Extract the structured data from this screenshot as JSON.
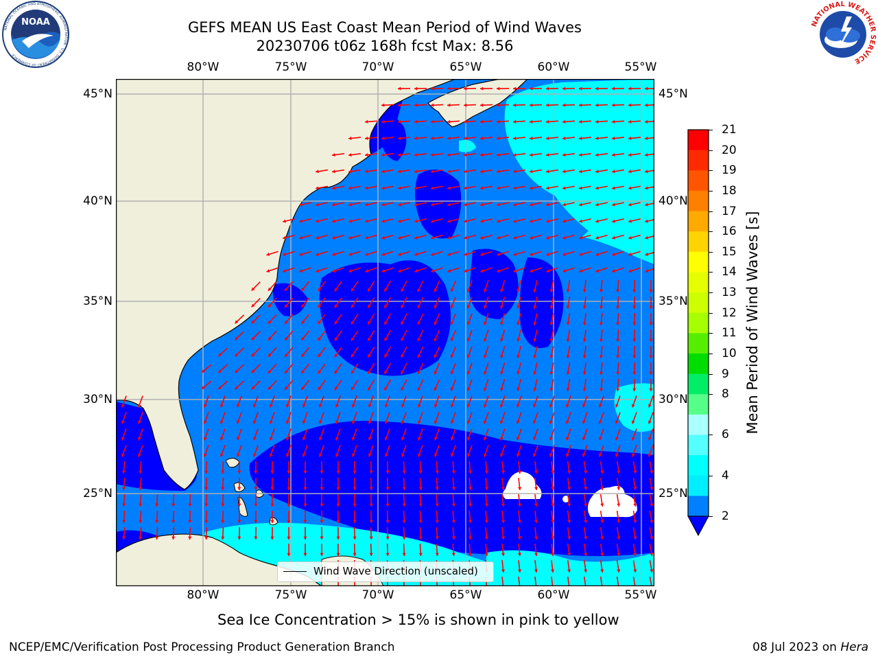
{
  "header": {
    "title_line1": "GEFS MEAN US East Coast Mean Period of Wind Waves",
    "title_line2": "20230706 t06z 168h fcst   Max: 8.56"
  },
  "logos": {
    "left": {
      "name": "noaa-logo",
      "text": "NOAA",
      "ring_text": "NATIONAL OCEANIC AND ATMOSPHERIC ADMINISTRATION · U.S. DEPARTMENT OF COMMERCE"
    },
    "right": {
      "name": "nws-logo",
      "ring_text": "NATIONAL WEATHER SERVICE"
    }
  },
  "map": {
    "lon_labels": [
      "80°W",
      "75°W",
      "70°W",
      "65°W",
      "60°W",
      "55°W"
    ],
    "lat_labels": [
      "45°N",
      "40°N",
      "35°N",
      "30°N",
      "25°N"
    ],
    "land_color": "#efefdc",
    "arrow_color": "#ff0000",
    "legend": {
      "label": "Wind Wave Direction (unscaled)"
    }
  },
  "colorbar": {
    "label": "Mean Period of Wind Waves [s]",
    "ticks": [
      "21",
      "20",
      "19",
      "18",
      "17",
      "16",
      "15",
      "14",
      "13",
      "12",
      "11",
      "10",
      "9",
      "8",
      "6",
      "4",
      "2"
    ],
    "colors_top_to_bottom": [
      "#ff0000",
      "#ff2a00",
      "#ff5500",
      "#ff8000",
      "#ffaa00",
      "#ffd400",
      "#ffff00",
      "#e6ff00",
      "#ccff00",
      "#a6ff00",
      "#55ee00",
      "#00dd00",
      "#00ee66",
      "#55ff88",
      "#aaffff",
      "#55ffff",
      "#00ffff",
      "#00eeff",
      "#0080ff"
    ],
    "extend_color": "#0000ff"
  },
  "note": "Sea Ice Concentration > 15% is shown in pink to yellow",
  "footer": {
    "left": "NCEP/EMC/Verification Post Processing Product Generation Branch",
    "right_date": "08 Jul 2023 on ",
    "right_machine": "Hera"
  }
}
